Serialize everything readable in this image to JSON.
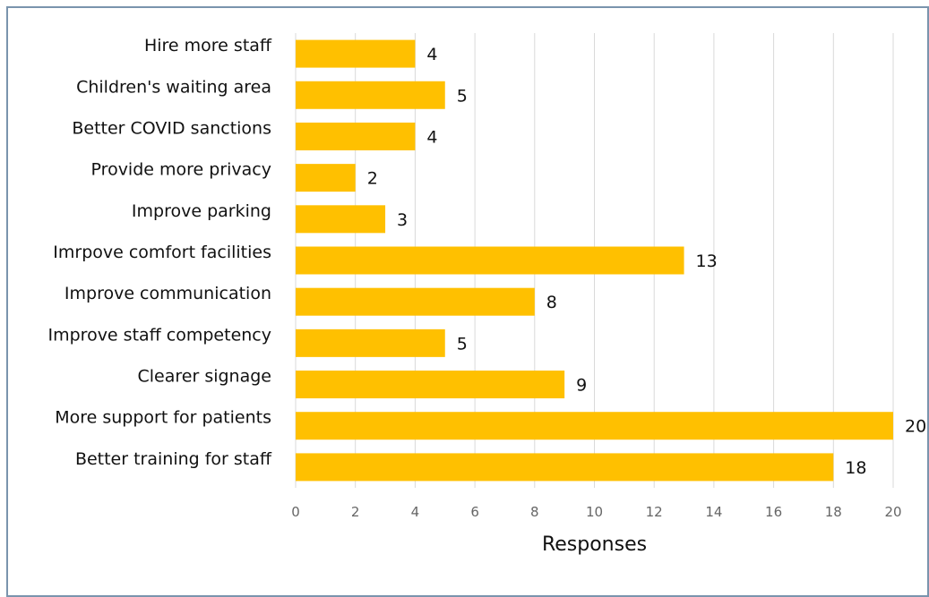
{
  "chart_data": {
    "type": "bar",
    "orientation": "horizontal",
    "categories": [
      "Hire more staff",
      "Children's waiting area",
      "Better COVID sanctions",
      "Provide more privacy",
      "Improve parking",
      "Imrpove comfort facilities",
      "Improve communication",
      "Improve staff competency",
      "Clearer signage",
      "More support for patients",
      "Better training for staff"
    ],
    "values": [
      4,
      5,
      4,
      2,
      3,
      13,
      8,
      5,
      9,
      20,
      18
    ],
    "xlabel": "Responses",
    "ylabel": "",
    "xlim": [
      0,
      20
    ],
    "xticks": [
      0,
      2,
      4,
      6,
      8,
      10,
      12,
      14,
      16,
      18,
      20
    ],
    "grid": "vertical",
    "legend": "none",
    "bar_color": "#ffc000",
    "data_labels": true
  }
}
